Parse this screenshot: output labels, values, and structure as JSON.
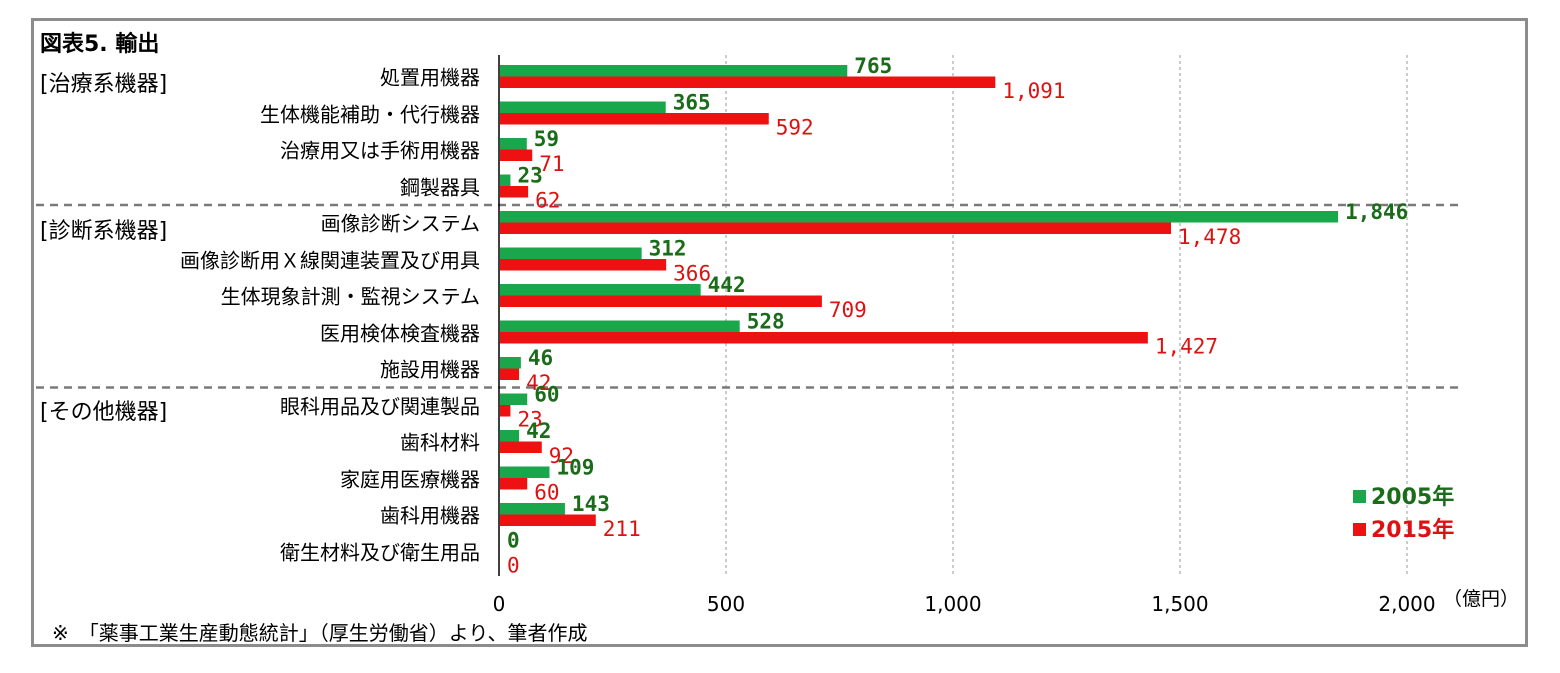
{
  "title": "図表5. 輸出",
  "note": "※　「薬事工業生産動態統計」（厚生労働省）より、筆者作成",
  "unit": "（億円）",
  "groups": [
    "[治療系機器]",
    "[診断系機器]",
    "[その他機器]"
  ],
  "legend": [
    "2005年",
    "2015年"
  ],
  "chart_data": {
    "type": "bar",
    "orientation": "horizontal",
    "title": "図表5. 輸出",
    "xlabel": "（億円）",
    "xlim": [
      0,
      2000
    ],
    "xticks": [
      0,
      500,
      1000,
      1500,
      2000
    ],
    "xtick_labels": [
      "0",
      "500",
      "1,000",
      "1,500",
      "2,000"
    ],
    "grid": true,
    "legend_position": "bottom-right",
    "categories": [
      "処置用機器",
      "生体機能補助・代行機器",
      "治療用又は手術用機器",
      "鋼製器具",
      "画像診断システム",
      "画像診断用Ｘ線関連装置及び用具",
      "生体現象計測・監視システム",
      "医用検体検査機器",
      "施設用機器",
      "眼科用品及び関連製品",
      "歯科材料",
      "家庭用医療機器",
      "歯科用機器",
      "衛生材料及び衛生用品"
    ],
    "series": [
      {
        "name": "2005年",
        "color": "#1aa64a",
        "values": [
          765,
          365,
          59,
          23,
          1846,
          312,
          442,
          528,
          46,
          60,
          42,
          109,
          143,
          0
        ],
        "labels": [
          "765",
          "365",
          "59",
          "23",
          "1,846",
          "312",
          "442",
          "528",
          "46",
          "60",
          "42",
          "109",
          "143",
          "0"
        ]
      },
      {
        "name": "2015年",
        "color": "#ee1111",
        "values": [
          1091,
          592,
          71,
          62,
          1478,
          366,
          709,
          1427,
          42,
          23,
          92,
          60,
          211,
          0
        ],
        "labels": [
          "1,091",
          "592",
          "71",
          "62",
          "1,478",
          "366",
          "709",
          "1,427",
          "42",
          "23",
          "92",
          "60",
          "211",
          "0"
        ]
      }
    ],
    "label_colors": [
      "#1a6b1a",
      "#dd1111"
    ]
  }
}
